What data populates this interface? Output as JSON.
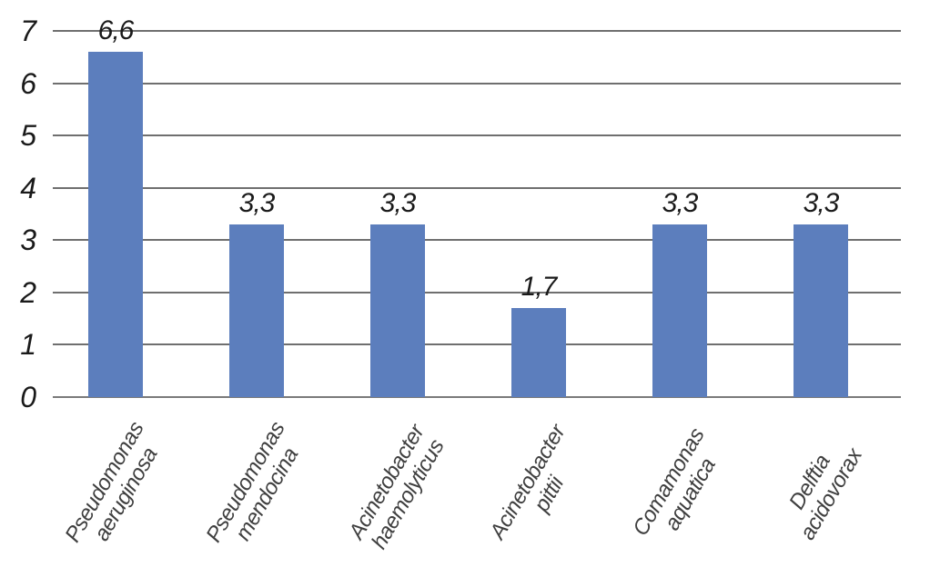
{
  "chart_data": {
    "type": "bar",
    "title": "",
    "xlabel": "",
    "ylabel": "",
    "categories": [
      "Pseudomonas aeruginosa",
      "Pseudomonas mendocina",
      "Acinetobacter haemolyticus",
      "Acinetobacter pittii",
      "Comamonas aquatica",
      "Delftia acidovorax"
    ],
    "values": [
      6.6,
      3.3,
      3.3,
      1.7,
      3.3,
      3.3
    ],
    "value_labels": [
      "6,6",
      "3,3",
      "3,3",
      "1,7",
      "3,3",
      "3,3"
    ],
    "decimal_separator": ",",
    "ylim": [
      0,
      7
    ],
    "yticks": [
      0,
      1,
      2,
      3,
      4,
      5,
      6,
      7
    ],
    "ytick_labels": [
      "0",
      "1",
      "2",
      "3",
      "4",
      "5",
      "6",
      "7"
    ],
    "grid": true,
    "legend": false,
    "colors": {
      "bar": "#5C7EBD",
      "gridline": "#6F6F6F",
      "axis_line": "#7A7A7A",
      "tick_label": "#1A1A1A",
      "value_label": "#1A1A1A",
      "category_label": "#3F3F3F",
      "background": "#FFFFFF"
    }
  }
}
